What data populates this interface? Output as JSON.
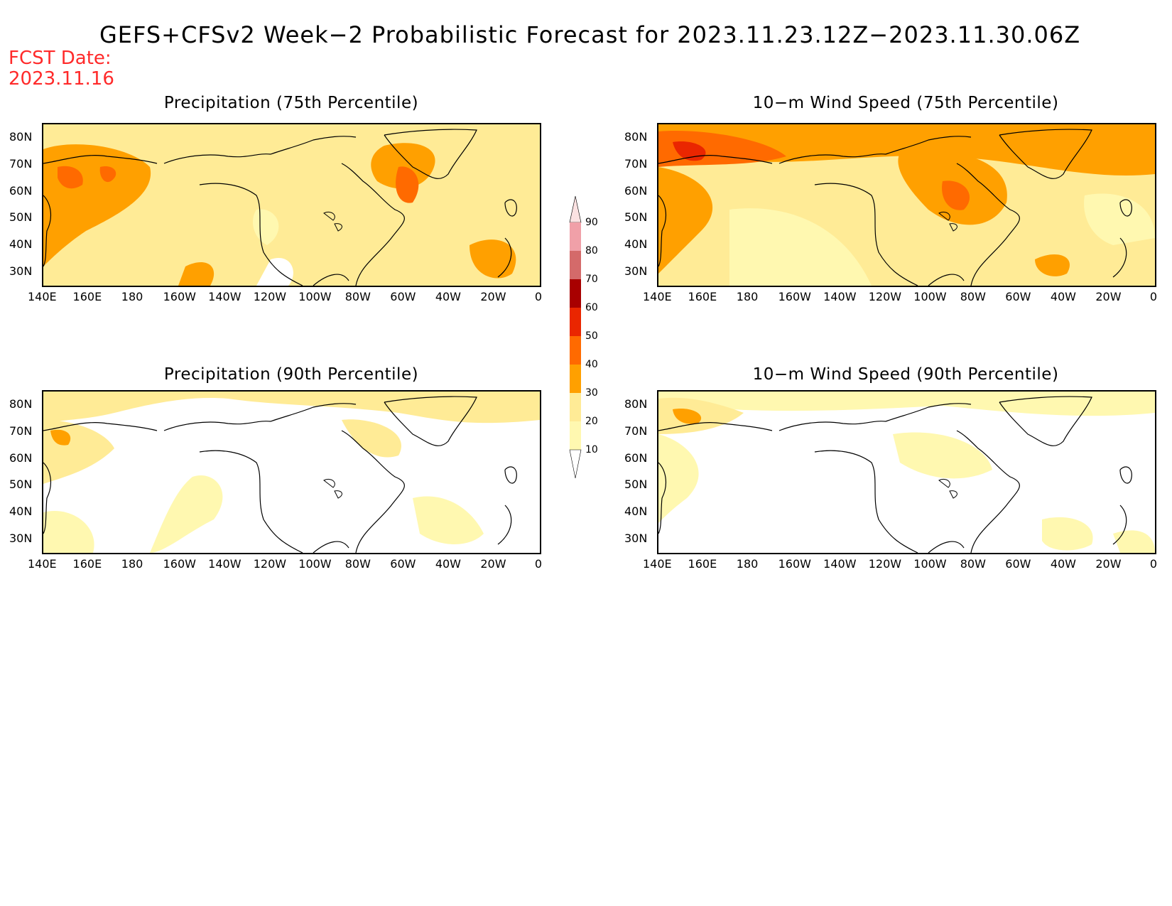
{
  "title": "GEFS+CFSv2 Week−2 Probabilistic Forecast for 2023.11.23.12Z−2023.11.30.06Z",
  "fcst_date_label": "FCST Date:",
  "fcst_date": "2023.11.16",
  "panels": [
    {
      "title": "Precipitation (75th Percentile)",
      "variable": "Precipitation",
      "percentile": 75
    },
    {
      "title": "10−m Wind Speed (75th Percentile)",
      "variable": "10-m Wind Speed",
      "percentile": 75
    },
    {
      "title": "Precipitation (90th Percentile)",
      "variable": "Precipitation",
      "percentile": 90
    },
    {
      "title": "10−m Wind Speed (90th Percentile)",
      "variable": "10-m Wind Speed",
      "percentile": 90
    }
  ],
  "map": {
    "lat_ticks": [
      "80N",
      "70N",
      "60N",
      "50N",
      "40N",
      "30N"
    ],
    "lon_ticks": [
      "140E",
      "160E",
      "180",
      "160W",
      "140W",
      "120W",
      "100W",
      "80W",
      "60W",
      "40W",
      "20W",
      "0"
    ],
    "lat_range": [
      25,
      85
    ],
    "lon_range": [
      140,
      360
    ]
  },
  "colorbar": {
    "levels": [
      "10",
      "20",
      "30",
      "40",
      "50",
      "60",
      "70",
      "80",
      "90"
    ],
    "colors": [
      "#fff8b0",
      "#ffeb96",
      "#ffa000",
      "#ff6a00",
      "#ea2600",
      "#a80000",
      "#d46a6a",
      "#f0a0a8",
      "#fbe2e2"
    ]
  }
}
